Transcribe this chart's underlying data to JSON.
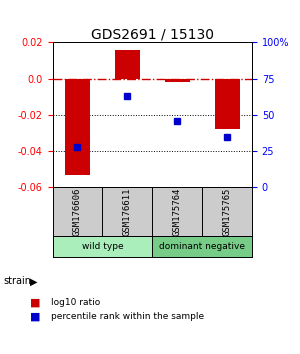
{
  "title": "GDS2691 / 15130",
  "samples": [
    "GSM176606",
    "GSM176611",
    "GSM175764",
    "GSM175765"
  ],
  "log10_ratio": [
    -0.053,
    0.016,
    -0.002,
    -0.028
  ],
  "percentile_rank": [
    28,
    63,
    46,
    35
  ],
  "ylim_left": [
    -0.06,
    0.02
  ],
  "ylim_right": [
    0,
    100
  ],
  "bar_color": "#cc0000",
  "dot_color": "#0000cc",
  "groups": [
    {
      "label": "wild type",
      "start": 0,
      "end": 2,
      "color": "#aaeebb"
    },
    {
      "label": "dominant negative",
      "start": 2,
      "end": 4,
      "color": "#77cc88"
    }
  ],
  "sample_row_color": "#cccccc",
  "hline_color": "#cc0000",
  "dotted_line_color": "#000000",
  "background_color": "#ffffff",
  "title_fontsize": 10,
  "tick_fontsize": 7,
  "bar_width": 0.5
}
